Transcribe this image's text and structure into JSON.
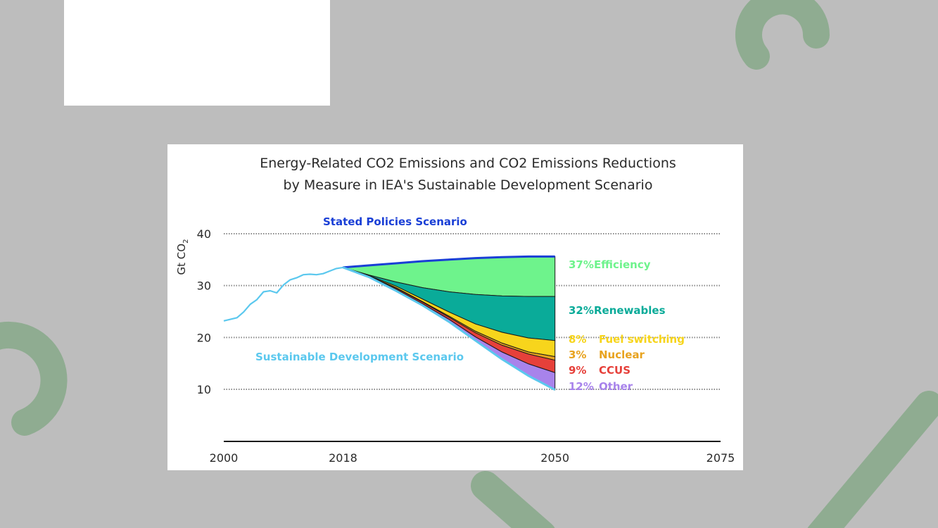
{
  "decor": {
    "shape_color": "#8fac91",
    "background": "#bdbdbd"
  },
  "chart_data": {
    "type": "area",
    "title": [
      "Energy-Related CO2 Emissions and CO2 Emissions Reductions",
      "by Measure in IEA's Sustainable Development Scenario"
    ],
    "ylabel": "Gt CO",
    "ylabel_sub": "2",
    "yticks": [
      40,
      30,
      20,
      10
    ],
    "xticks": [
      "2000",
      "2018",
      "2050",
      "2075"
    ],
    "ylim": [
      0,
      45
    ],
    "xlim": [
      2000,
      2075
    ],
    "scenario_labels": {
      "stated": {
        "text": "Stated Policies Scenario",
        "color": "#1a3fd6"
      },
      "sustainable": {
        "text": "Sustainable Development Scenario",
        "color": "#5bc8ee"
      }
    },
    "historical": {
      "color": "#5bc8ee",
      "x": [
        2000,
        2001,
        2002,
        2003,
        2004,
        2005,
        2006,
        2007,
        2008,
        2009,
        2010,
        2011,
        2012,
        2013,
        2014,
        2015,
        2016,
        2017,
        2018
      ],
      "y": [
        23.2,
        23.5,
        23.8,
        24.9,
        26.4,
        27.3,
        28.8,
        29.0,
        28.6,
        30.1,
        31.1,
        31.5,
        32.1,
        32.2,
        32.1,
        32.3,
        32.8,
        33.3,
        33.5
      ]
    },
    "x": [
      2018,
      2022,
      2026,
      2030,
      2034,
      2038,
      2042,
      2046,
      2050
    ],
    "stated_policies": [
      33.5,
      33.9,
      34.3,
      34.7,
      35.0,
      35.3,
      35.5,
      35.6,
      35.6
    ],
    "sustainable_development": [
      33.5,
      31.6,
      29.0,
      26.2,
      23.0,
      19.4,
      15.8,
      12.6,
      9.9
    ],
    "wedges": [
      {
        "pct": "37%",
        "label": "Efficiency",
        "color": "#6ef38c",
        "boundary": [
          33.5,
          32.0,
          30.7,
          29.6,
          28.8,
          28.3,
          28.0,
          27.9,
          27.9
        ]
      },
      {
        "pct": "32%",
        "label": "Renewables",
        "color": "#0aab99",
        "boundary": [
          33.5,
          31.9,
          29.9,
          27.4,
          24.9,
          22.6,
          21.0,
          19.9,
          19.4
        ]
      },
      {
        "pct": "8%",
        "label": "Fuel switching",
        "color": "#f7d51c",
        "boundary": [
          33.5,
          31.8,
          29.6,
          26.9,
          24.1,
          21.2,
          18.9,
          17.2,
          16.3
        ]
      },
      {
        "pct": "3%",
        "label": "Nuclear",
        "color": "#e8a31f",
        "boundary": [
          33.5,
          31.8,
          29.5,
          26.8,
          23.9,
          20.9,
          18.5,
          16.8,
          15.6
        ]
      },
      {
        "pct": "9%",
        "label": "CCUS",
        "color": "#e6403a",
        "boundary": [
          33.5,
          31.7,
          29.3,
          26.5,
          23.5,
          20.1,
          17.2,
          14.9,
          13.2
        ]
      },
      {
        "pct": "12%",
        "label": "Other",
        "color": "#a883eb",
        "boundary": [
          33.5,
          31.6,
          29.0,
          26.2,
          23.0,
          19.4,
          15.8,
          12.6,
          9.9
        ]
      }
    ],
    "grid": "dotted"
  }
}
